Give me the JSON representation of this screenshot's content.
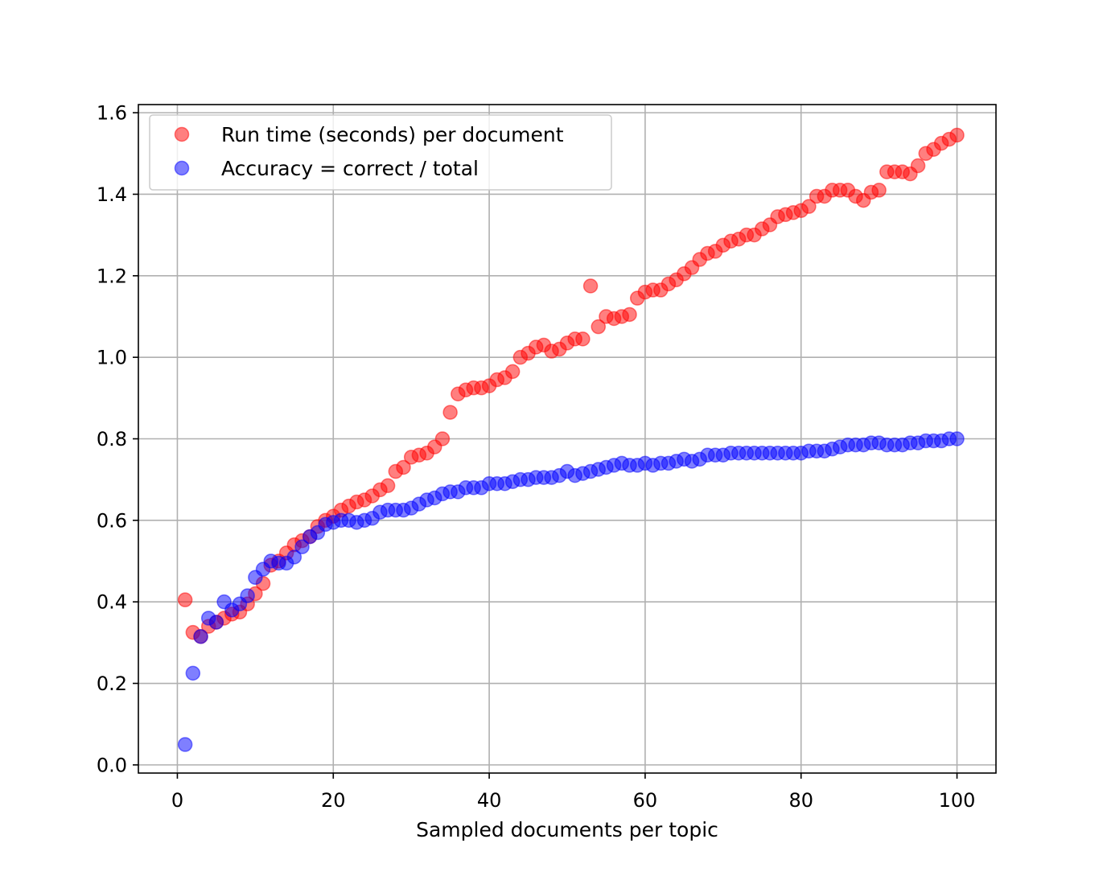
{
  "chart_data": {
    "type": "scatter",
    "title": "",
    "xlabel": "Sampled documents per topic",
    "ylabel": "",
    "xlim": [
      -5,
      105
    ],
    "ylim": [
      -0.02,
      1.62
    ],
    "xticks": [
      0,
      20,
      40,
      60,
      80,
      100
    ],
    "xtick_labels": [
      "0",
      "20",
      "40",
      "60",
      "80",
      "100"
    ],
    "yticks": [
      0.0,
      0.2,
      0.4,
      0.6,
      0.8,
      1.0,
      1.2,
      1.4,
      1.6
    ],
    "ytick_labels": [
      "0.0",
      "0.2",
      "0.4",
      "0.6",
      "0.8",
      "1.0",
      "1.2",
      "1.4",
      "1.6"
    ],
    "grid": true,
    "legend_position": "top-left",
    "x": [
      1,
      2,
      3,
      4,
      5,
      6,
      7,
      8,
      9,
      10,
      11,
      12,
      13,
      14,
      15,
      16,
      17,
      18,
      19,
      20,
      21,
      22,
      23,
      24,
      25,
      26,
      27,
      28,
      29,
      30,
      31,
      32,
      33,
      34,
      35,
      36,
      37,
      38,
      39,
      40,
      41,
      42,
      43,
      44,
      45,
      46,
      47,
      48,
      49,
      50,
      51,
      52,
      53,
      54,
      55,
      56,
      57,
      58,
      59,
      60,
      61,
      62,
      63,
      64,
      65,
      66,
      67,
      68,
      69,
      70,
      71,
      72,
      73,
      74,
      75,
      76,
      77,
      78,
      79,
      80,
      81,
      82,
      83,
      84,
      85,
      86,
      87,
      88,
      89,
      90,
      91,
      92,
      93,
      94,
      95,
      96,
      97,
      98,
      99,
      100
    ],
    "series": [
      {
        "name": "Run time (seconds) per document",
        "color": "#ff0000",
        "values": [
          0.405,
          0.325,
          0.315,
          0.34,
          0.35,
          0.36,
          0.37,
          0.375,
          0.395,
          0.42,
          0.445,
          0.49,
          0.5,
          0.52,
          0.54,
          0.55,
          0.56,
          0.585,
          0.6,
          0.61,
          0.625,
          0.635,
          0.645,
          0.65,
          0.66,
          0.675,
          0.685,
          0.72,
          0.73,
          0.755,
          0.76,
          0.765,
          0.78,
          0.8,
          0.865,
          0.91,
          0.92,
          0.925,
          0.925,
          0.93,
          0.945,
          0.95,
          0.965,
          1.0,
          1.01,
          1.025,
          1.03,
          1.015,
          1.02,
          1.035,
          1.045,
          1.045,
          1.175,
          1.075,
          1.1,
          1.095,
          1.1,
          1.105,
          1.145,
          1.16,
          1.165,
          1.165,
          1.18,
          1.19,
          1.205,
          1.22,
          1.24,
          1.255,
          1.26,
          1.275,
          1.285,
          1.29,
          1.3,
          1.3,
          1.315,
          1.325,
          1.345,
          1.35,
          1.355,
          1.36,
          1.37,
          1.395,
          1.395,
          1.41,
          1.41,
          1.41,
          1.395,
          1.385,
          1.405,
          1.41,
          1.455,
          1.455,
          1.455,
          1.45,
          1.47,
          1.5,
          1.51,
          1.525,
          1.535,
          1.545
        ]
      },
      {
        "name": "Accuracy = correct / total",
        "color": "#0000ff",
        "values": [
          0.05,
          0.225,
          0.315,
          0.36,
          0.35,
          0.4,
          0.38,
          0.395,
          0.415,
          0.46,
          0.48,
          0.5,
          0.495,
          0.495,
          0.51,
          0.535,
          0.56,
          0.57,
          0.59,
          0.595,
          0.6,
          0.6,
          0.595,
          0.6,
          0.605,
          0.62,
          0.625,
          0.625,
          0.625,
          0.63,
          0.64,
          0.65,
          0.655,
          0.665,
          0.67,
          0.67,
          0.68,
          0.68,
          0.68,
          0.69,
          0.69,
          0.69,
          0.695,
          0.7,
          0.7,
          0.705,
          0.705,
          0.705,
          0.71,
          0.72,
          0.71,
          0.715,
          0.72,
          0.725,
          0.73,
          0.735,
          0.74,
          0.735,
          0.735,
          0.74,
          0.735,
          0.74,
          0.74,
          0.745,
          0.75,
          0.745,
          0.75,
          0.76,
          0.76,
          0.76,
          0.765,
          0.765,
          0.765,
          0.765,
          0.765,
          0.765,
          0.765,
          0.765,
          0.765,
          0.765,
          0.77,
          0.77,
          0.77,
          0.775,
          0.78,
          0.785,
          0.785,
          0.785,
          0.79,
          0.79,
          0.785,
          0.785,
          0.785,
          0.79,
          0.79,
          0.795,
          0.795,
          0.795,
          0.8,
          0.8
        ]
      }
    ]
  }
}
